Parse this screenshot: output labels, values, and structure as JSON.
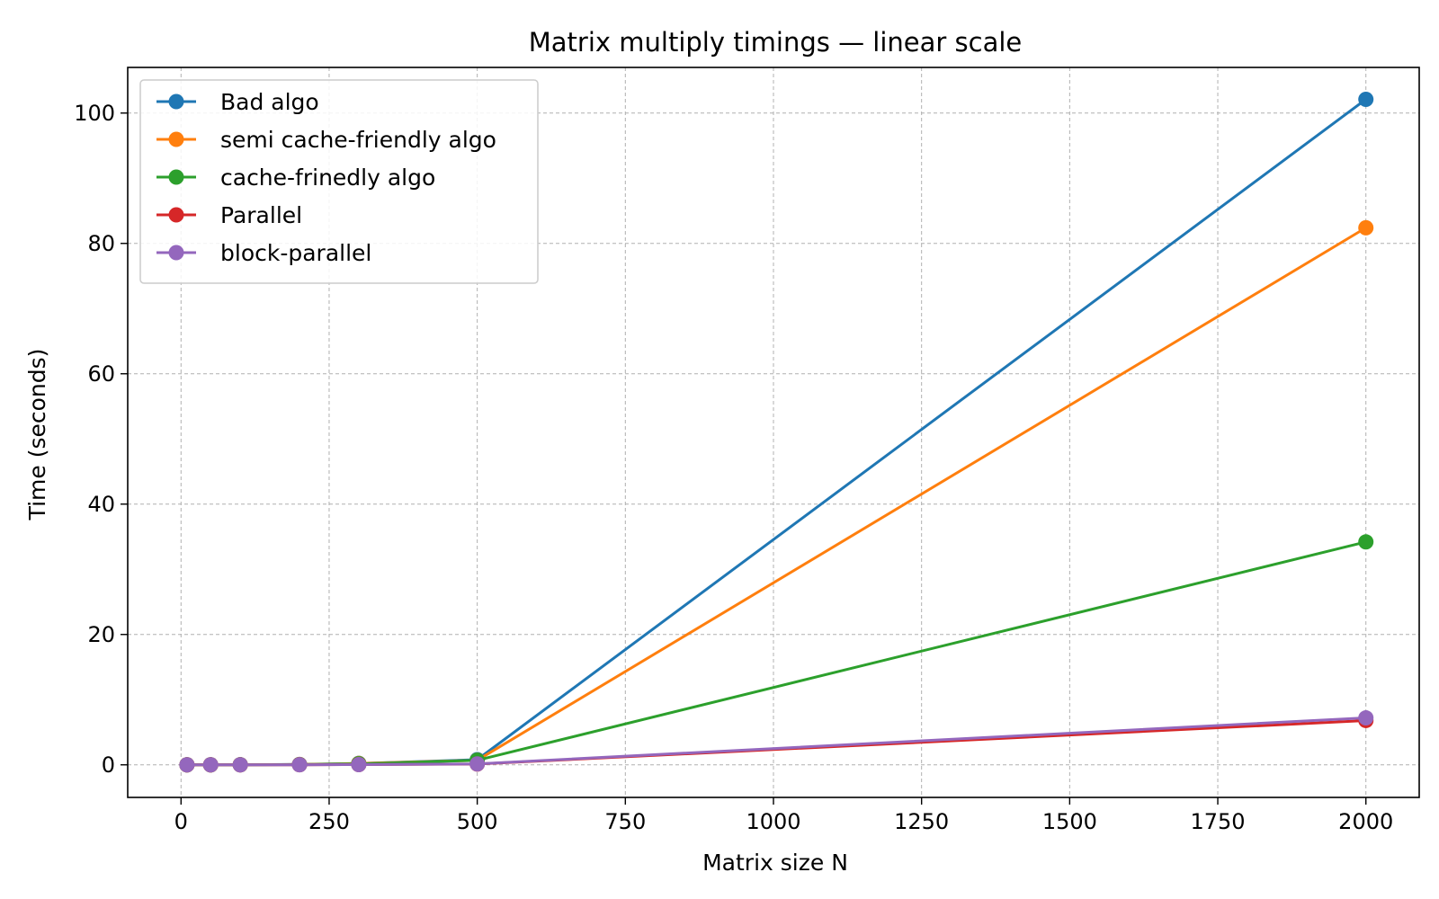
{
  "chart_data": {
    "type": "line",
    "title": "Matrix multiply timings — linear scale",
    "xlabel": "Matrix size N",
    "ylabel": "Time (seconds)",
    "xlim": [
      -90,
      2090
    ],
    "ylim": [
      -5,
      107
    ],
    "xticks": [
      0,
      250,
      500,
      750,
      1000,
      1250,
      1500,
      1750,
      2000
    ],
    "yticks": [
      0,
      20,
      40,
      60,
      80,
      100
    ],
    "grid": true,
    "legend_position": "upper-left",
    "x": [
      10,
      50,
      100,
      200,
      300,
      500,
      2000
    ],
    "series": [
      {
        "name": "Bad algo",
        "color": "#1f77b4",
        "values": [
          0.0,
          0.0,
          0.01,
          0.06,
          0.22,
          0.8,
          102.1
        ]
      },
      {
        "name": "semi cache-friendly algo",
        "color": "#ff7f0e",
        "values": [
          0.0,
          0.0,
          0.01,
          0.05,
          0.2,
          0.7,
          82.4
        ]
      },
      {
        "name": "cache-frinedly algo",
        "color": "#2ca02c",
        "values": [
          0.0,
          0.0,
          0.01,
          0.04,
          0.15,
          0.7,
          34.2
        ]
      },
      {
        "name": "Parallel",
        "color": "#d62728",
        "values": [
          0.0,
          0.0,
          0.0,
          0.01,
          0.03,
          0.12,
          6.8
        ]
      },
      {
        "name": "block-parallel",
        "color": "#9467bd",
        "values": [
          0.0,
          0.0,
          0.0,
          0.01,
          0.04,
          0.14,
          7.2
        ]
      }
    ]
  }
}
